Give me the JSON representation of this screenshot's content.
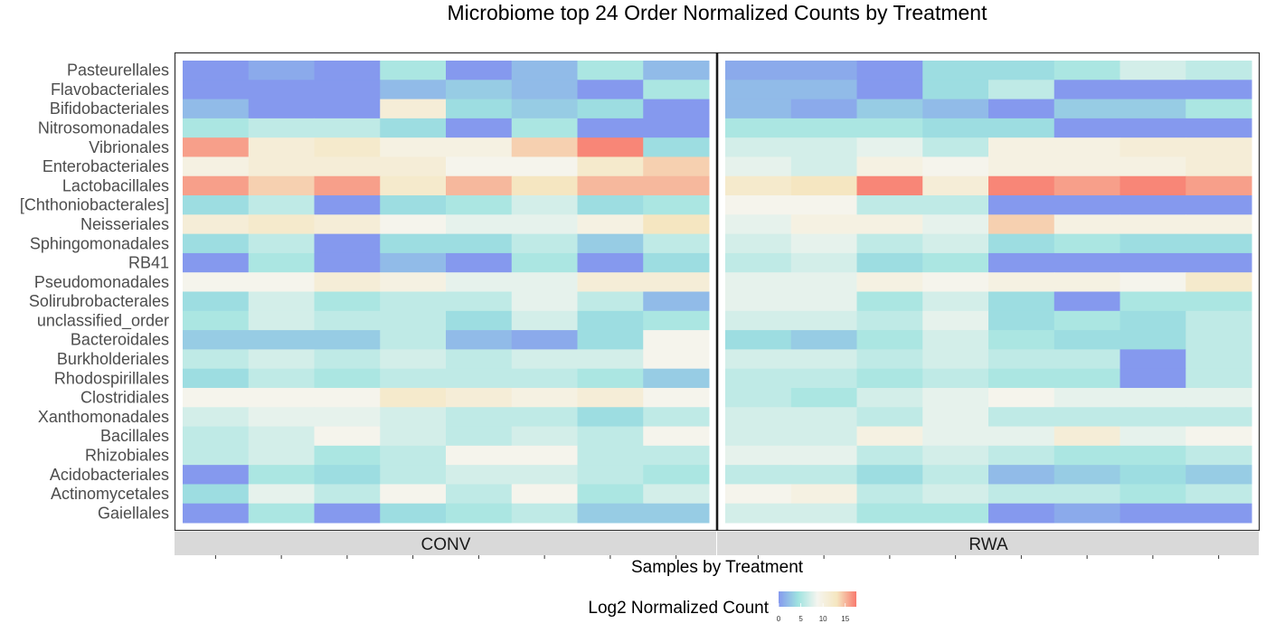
{
  "chart_data": {
    "type": "heatmap",
    "title": "Microbiome top 24 Order Normalized Counts by Treatment",
    "xlabel": "Samples by Treatment",
    "ylabel": "",
    "rows": [
      "Pasteurellales",
      "Flavobacteriales",
      "Bifidobacteriales",
      "Nitrosomonadales",
      "Vibrionales",
      "Enterobacteriales",
      "Lactobacillales",
      "[Chthoniobacterales]",
      "Neisseriales",
      "Sphingomonadales",
      "RB41",
      "Pseudomonadales",
      "Solirubrobacterales",
      "unclassified_order",
      "Bacteroidales",
      "Burkholderiales",
      "Rhodospirillales",
      "Clostridiales",
      "Xanthomonadales",
      "Bacillales",
      "Rhizobiales",
      "Acidobacteriales",
      "Actinomycetales",
      "Gaiellales"
    ],
    "panels": [
      {
        "name": "CONV",
        "samples": 8,
        "values": [
          [
            0,
            1,
            0,
            5,
            0,
            2,
            5,
            2
          ],
          [
            0,
            0,
            0,
            2,
            3,
            2,
            0,
            5
          ],
          [
            2,
            0,
            0,
            11,
            4,
            3,
            4,
            0
          ],
          [
            5,
            6,
            6,
            4,
            0,
            5,
            0,
            0
          ],
          [
            16,
            11,
            12,
            10,
            10,
            14,
            17,
            4
          ],
          [
            10,
            11,
            11,
            11,
            9,
            9,
            12,
            14
          ],
          [
            16,
            14,
            16,
            12,
            15,
            13,
            15,
            15
          ],
          [
            4,
            6,
            0,
            4,
            5,
            7,
            4,
            5
          ],
          [
            11,
            12,
            11,
            9,
            8,
            8,
            10,
            13
          ],
          [
            4,
            6,
            0,
            4,
            4,
            6,
            3,
            6
          ],
          [
            0,
            5,
            0,
            2,
            0,
            5,
            0,
            4
          ],
          [
            9,
            9,
            11,
            10,
            8,
            8,
            11,
            11
          ],
          [
            4,
            7,
            5,
            6,
            6,
            8,
            6,
            2
          ],
          [
            5,
            7,
            6,
            6,
            4,
            7,
            4,
            5
          ],
          [
            3,
            3,
            3,
            6,
            2,
            1,
            4,
            9
          ],
          [
            6,
            7,
            6,
            7,
            6,
            7,
            7,
            9
          ],
          [
            4,
            6,
            5,
            6,
            6,
            6,
            5,
            3
          ],
          [
            9,
            9,
            9,
            12,
            11,
            10,
            11,
            9
          ],
          [
            7,
            8,
            8,
            7,
            6,
            6,
            4,
            6
          ],
          [
            6,
            7,
            9,
            7,
            6,
            7,
            6,
            9
          ],
          [
            6,
            7,
            5,
            6,
            9,
            9,
            6,
            6
          ],
          [
            0,
            5,
            4,
            6,
            7,
            7,
            6,
            5
          ],
          [
            4,
            8,
            6,
            9,
            6,
            9,
            5,
            7
          ],
          [
            0,
            5,
            0,
            4,
            5,
            6,
            3,
            3
          ]
        ]
      },
      {
        "name": "RWA",
        "samples": 8,
        "values": [
          [
            1,
            1,
            0,
            4,
            4,
            5,
            7,
            6
          ],
          [
            2,
            2,
            0,
            4,
            6,
            0,
            0,
            0
          ],
          [
            2,
            1,
            3,
            2,
            0,
            3,
            3,
            5
          ],
          [
            5,
            5,
            5,
            4,
            4,
            0,
            0,
            0
          ],
          [
            7,
            7,
            8,
            6,
            10,
            10,
            11,
            11
          ],
          [
            8,
            7,
            10,
            9,
            10,
            10,
            10,
            11
          ],
          [
            12,
            13,
            17,
            11,
            17,
            16,
            17,
            16
          ],
          [
            9,
            9,
            6,
            6,
            0,
            0,
            0,
            0
          ],
          [
            8,
            10,
            10,
            8,
            14,
            10,
            10,
            10
          ],
          [
            7,
            8,
            6,
            7,
            4,
            5,
            4,
            4
          ],
          [
            6,
            7,
            4,
            5,
            0,
            0,
            0,
            0
          ],
          [
            8,
            8,
            10,
            9,
            10,
            10,
            9,
            12
          ],
          [
            8,
            8,
            5,
            7,
            4,
            0,
            5,
            5
          ],
          [
            7,
            7,
            6,
            8,
            4,
            5,
            4,
            6
          ],
          [
            4,
            3,
            5,
            7,
            5,
            4,
            4,
            6
          ],
          [
            7,
            7,
            6,
            7,
            6,
            6,
            0,
            6
          ],
          [
            6,
            6,
            5,
            6,
            5,
            5,
            0,
            6
          ],
          [
            6,
            5,
            7,
            8,
            9,
            8,
            8,
            8
          ],
          [
            7,
            7,
            6,
            8,
            6,
            6,
            6,
            6
          ],
          [
            7,
            7,
            10,
            8,
            8,
            11,
            8,
            9
          ],
          [
            8,
            8,
            6,
            7,
            6,
            5,
            5,
            6
          ],
          [
            6,
            6,
            4,
            6,
            2,
            3,
            4,
            3
          ],
          [
            9,
            10,
            6,
            7,
            6,
            6,
            5,
            6
          ],
          [
            7,
            7,
            5,
            5,
            0,
            1,
            0,
            0
          ]
        ]
      }
    ],
    "legend": {
      "title": "Log2 Normalized Count",
      "ticks": [
        "0",
        "5",
        "10",
        "15"
      ],
      "tick_values": [
        0,
        5,
        10,
        15
      ],
      "range": [
        0,
        17.5
      ],
      "colors": [
        "#8599ee",
        "#9fe3e0",
        "#f5f5ef",
        "#f5e6c0",
        "#f87a6e"
      ],
      "placement": "bottom"
    },
    "colors": {
      "strip_bg": "#d9d9d9",
      "panel_border": "#333333",
      "grid": "#e6e6e6"
    }
  }
}
